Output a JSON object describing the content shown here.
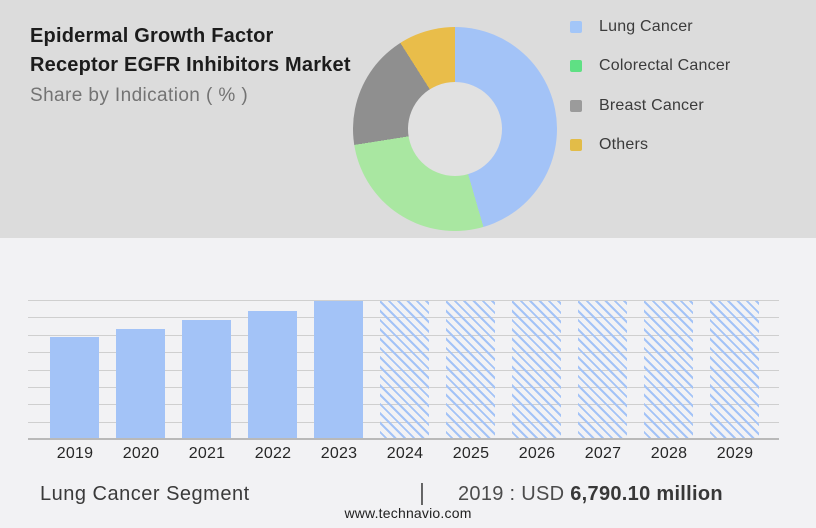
{
  "header": {
    "title_line1": "Epidermal Growth Factor",
    "title_line2": "Receptor EGFR Inhibitors Market",
    "subtitle": "Share by Indication ( % )"
  },
  "legend": {
    "items": [
      {
        "label": "Lung Cancer",
        "color": "#a3c6f8"
      },
      {
        "label": "Colorectal Cancer",
        "color": "#5fe084"
      },
      {
        "label": "Breast Cancer",
        "color": "#9b9b9b"
      },
      {
        "label": "Others",
        "color": "#e2bc48"
      }
    ]
  },
  "chart_data": [
    {
      "type": "pie",
      "subtype": "donut",
      "title": "Share by Indication ( % )",
      "labels": [
        "Lung Cancer",
        "Colorectal Cancer",
        "Breast Cancer",
        "Others"
      ],
      "values": [
        45.5,
        27,
        18.5,
        9
      ],
      "unit": "%",
      "colors": [
        "#a3c3f7",
        "#a9e7a1",
        "#8f8f8f",
        "#e9bd4a"
      ],
      "start_angle_deg": 0,
      "clockwise": true,
      "legend_position": "right"
    },
    {
      "type": "bar",
      "title": "Lung Cancer Segment",
      "categories": [
        "2019",
        "2020",
        "2021",
        "2022",
        "2023",
        "2024",
        "2025",
        "2026",
        "2027",
        "2028",
        "2029"
      ],
      "series": [
        {
          "name": "Lung Cancer Segment",
          "values_pct_of_max": [
            74,
            80,
            86,
            93,
            100,
            100,
            100,
            100,
            100,
            100,
            100
          ]
        }
      ],
      "known_point": {
        "year": "2019",
        "value": "USD 6,790.10 million"
      },
      "actual_years": [
        "2019",
        "2020",
        "2021",
        "2022",
        "2023"
      ],
      "forecast_years": [
        "2024",
        "2025",
        "2026",
        "2027",
        "2028",
        "2029"
      ],
      "forecast_style": "hatched",
      "bar_color": "#a3c3f7",
      "grid": true,
      "gridline_count": 9,
      "yaxis_labels": false
    }
  ],
  "footer": {
    "segment_label": "Lung Cancer Segment",
    "separator": "|",
    "value_prefix": "2019 : USD ",
    "value_bold": "6,790.10 million",
    "website": "www.technavio.com"
  },
  "colors": {
    "panel_top_bg": "#dcdcdc",
    "panel_bottom_bg": "#f2f2f4",
    "donut_hole": "#e1e1e1",
    "gridline": "#cfcfcf",
    "axis_baseline": "#b9b9b9",
    "title_text": "#1c1c1c",
    "subtitle_text": "#737373"
  }
}
